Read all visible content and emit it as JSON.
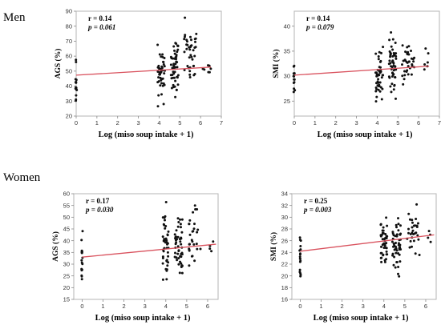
{
  "groups": [
    {
      "label": "Men"
    },
    {
      "label": "Women"
    }
  ],
  "chart_data": [
    {
      "type": "scatter",
      "group": "Men",
      "xlabel": "Log (miso soup intake + 1)",
      "ylabel": "AGS (%)",
      "xlim": [
        0,
        7
      ],
      "ylim": [
        20,
        90
      ],
      "xticks": [
        0,
        1,
        2,
        3,
        4,
        5,
        6,
        7
      ],
      "yticks": [
        20,
        30,
        40,
        50,
        60,
        70,
        80,
        90
      ],
      "r_text": "r =  0.14",
      "p_text": "p = 0.061",
      "trend": {
        "x": [
          0,
          6.5
        ],
        "y": [
          47.3,
          52.7
        ]
      },
      "seed": 11,
      "clusters": [
        {
          "xc": 0,
          "xs": 0.03,
          "n": 16,
          "ymin": 20,
          "ymax": 64
        },
        {
          "xc": 4.1,
          "xs": 0.18,
          "n": 45,
          "ymin": 24,
          "ymax": 74
        },
        {
          "xc": 4.75,
          "xs": 0.18,
          "n": 50,
          "ymin": 28,
          "ymax": 77
        },
        {
          "xc": 5.5,
          "xs": 0.3,
          "n": 40,
          "ymin": 31,
          "ymax": 87
        },
        {
          "xc": 6.3,
          "xs": 0.2,
          "n": 7,
          "ymin": 38,
          "ymax": 65
        }
      ]
    },
    {
      "type": "scatter",
      "group": "Men",
      "xlabel": "Log (miso soup intake + 1)",
      "ylabel": "SMI (%)",
      "xlim": [
        0,
        7
      ],
      "ylim": [
        22,
        43
      ],
      "xticks": [
        0,
        1,
        2,
        3,
        4,
        5,
        6,
        7
      ],
      "yticks": [
        25,
        30,
        35,
        40
      ],
      "r_text": "r =  0.14",
      "p_text": "p = 0.079",
      "trend": {
        "x": [
          0,
          6.5
        ],
        "y": [
          30.2,
          32.0
        ]
      },
      "seed": 23,
      "clusters": [
        {
          "xc": 0,
          "xs": 0.03,
          "n": 14,
          "ymin": 24,
          "ymax": 35
        },
        {
          "xc": 4.1,
          "xs": 0.18,
          "n": 45,
          "ymin": 22.5,
          "ymax": 38
        },
        {
          "xc": 4.75,
          "xs": 0.18,
          "n": 50,
          "ymin": 23,
          "ymax": 42
        },
        {
          "xc": 5.5,
          "xs": 0.3,
          "n": 35,
          "ymin": 27,
          "ymax": 38
        },
        {
          "xc": 6.3,
          "xs": 0.2,
          "n": 6,
          "ymin": 29,
          "ymax": 37
        }
      ]
    },
    {
      "type": "scatter",
      "group": "Women",
      "xlabel": "Log (miso soup intake + 1)",
      "ylabel": "AGS (%)",
      "xlim": [
        -0.4,
        6.5
      ],
      "ylim": [
        15,
        60
      ],
      "xticks": [
        0,
        1,
        2,
        3,
        4,
        5,
        6
      ],
      "yticks": [
        15,
        20,
        25,
        30,
        35,
        40,
        45,
        50,
        55,
        60
      ],
      "r_text": "r =  0.17",
      "p_text": "p = 0.030",
      "trend": {
        "x": [
          0,
          6.4
        ],
        "y": [
          33.0,
          38.5
        ]
      },
      "seed": 37,
      "clusters": [
        {
          "xc": 0,
          "xs": 0.03,
          "n": 18,
          "ymin": 16,
          "ymax": 48
        },
        {
          "xc": 4.0,
          "xs": 0.15,
          "n": 45,
          "ymin": 17,
          "ymax": 58
        },
        {
          "xc": 4.6,
          "xs": 0.2,
          "n": 50,
          "ymin": 19,
          "ymax": 55
        },
        {
          "xc": 5.4,
          "xs": 0.3,
          "n": 30,
          "ymin": 25,
          "ymax": 59
        },
        {
          "xc": 6.2,
          "xs": 0.1,
          "n": 4,
          "ymin": 32,
          "ymax": 42
        }
      ]
    },
    {
      "type": "scatter",
      "group": "Women",
      "xlabel": "Log (miso soup intake + 1)",
      "ylabel": "SMI (%)",
      "xlim": [
        -0.4,
        6.5
      ],
      "ylim": [
        16,
        34
      ],
      "xticks": [
        0,
        1,
        2,
        3,
        4,
        5,
        6
      ],
      "yticks": [
        16,
        18,
        20,
        22,
        24,
        26,
        28,
        30,
        32,
        34
      ],
      "r_text": "r =  0.25",
      "p_text": "p = 0.003",
      "trend": {
        "x": [
          0,
          6.4
        ],
        "y": [
          24.2,
          27.0
        ]
      },
      "seed": 51,
      "clusters": [
        {
          "xc": 0,
          "xs": 0.03,
          "n": 18,
          "ymin": 17,
          "ymax": 30
        },
        {
          "xc": 4.0,
          "xs": 0.15,
          "n": 45,
          "ymin": 20,
          "ymax": 31.5
        },
        {
          "xc": 4.6,
          "xs": 0.2,
          "n": 50,
          "ymin": 19,
          "ymax": 32
        },
        {
          "xc": 5.4,
          "xs": 0.3,
          "n": 30,
          "ymin": 22,
          "ymax": 33.5
        },
        {
          "xc": 6.2,
          "xs": 0.1,
          "n": 4,
          "ymin": 25,
          "ymax": 29
        }
      ]
    }
  ]
}
